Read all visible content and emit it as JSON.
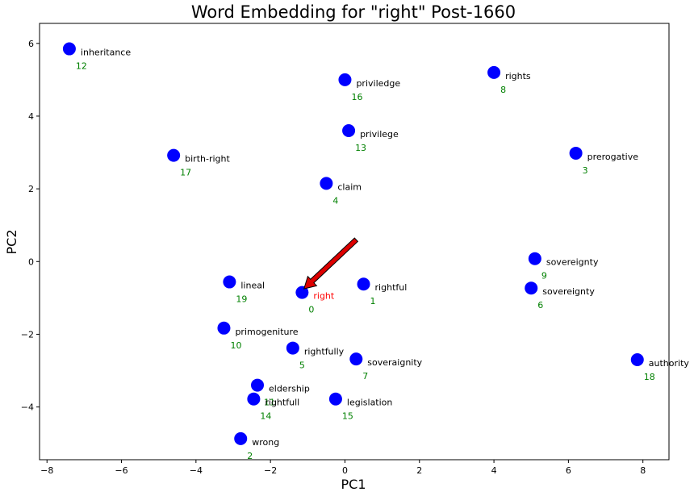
{
  "chart_data": {
    "type": "scatter",
    "title": "Word Embedding for \"right\" Post-1660",
    "xlabel": "PC1",
    "ylabel": "PC2",
    "xlim": [
      -8.2,
      8.7
    ],
    "ylim": [
      -5.45,
      6.55
    ],
    "xticks": [
      -8,
      -6,
      -4,
      -2,
      0,
      2,
      4,
      6,
      8
    ],
    "yticks": [
      -4,
      -2,
      0,
      2,
      4,
      6
    ],
    "grid": false,
    "point_color": "#0000ff",
    "word_label_color": "#000000",
    "highlight_label_color": "#ff0000",
    "index_label_color": "#008000",
    "arrow_color": "#dd0000",
    "arrow": {
      "from": [
        0.3,
        0.6
      ],
      "to": [
        -1.1,
        -0.75
      ]
    },
    "points": [
      {
        "word": "right",
        "index": "0",
        "x": -1.15,
        "y": -0.85,
        "highlight": true
      },
      {
        "word": "rightful",
        "index": "1",
        "x": 0.5,
        "y": -0.62
      },
      {
        "word": "wrong",
        "index": "2",
        "x": -2.8,
        "y": -4.87
      },
      {
        "word": "prerogative",
        "index": "3",
        "x": 6.2,
        "y": 2.98
      },
      {
        "word": "claim",
        "index": "4",
        "x": -0.5,
        "y": 2.15
      },
      {
        "word": "rightfully",
        "index": "5",
        "x": -1.4,
        "y": -2.38
      },
      {
        "word": "sovereignty",
        "index": "6",
        "x": 5.0,
        "y": -0.73
      },
      {
        "word": "soveraignity",
        "index": "7",
        "x": 0.3,
        "y": -2.68
      },
      {
        "word": "rights",
        "index": "8",
        "x": 4.0,
        "y": 5.2
      },
      {
        "word": "sovereignty",
        "index": "9",
        "x": 5.1,
        "y": 0.08
      },
      {
        "word": "primogeniture",
        "index": "10",
        "x": -3.25,
        "y": -1.83
      },
      {
        "word": "eldership",
        "index": "11",
        "x": -2.35,
        "y": -3.4
      },
      {
        "word": "inheritance",
        "index": "12",
        "x": -7.4,
        "y": 5.85
      },
      {
        "word": "privilege",
        "index": "13",
        "x": 0.1,
        "y": 3.6
      },
      {
        "word": "rightfull",
        "index": "14",
        "x": -2.45,
        "y": -3.78
      },
      {
        "word": "legislation",
        "index": "15",
        "x": -0.25,
        "y": -3.78
      },
      {
        "word": "priviledge",
        "index": "16",
        "x": 0.0,
        "y": 5.0
      },
      {
        "word": "birth-right",
        "index": "17",
        "x": -4.6,
        "y": 2.92
      },
      {
        "word": "authority",
        "index": "18",
        "x": 7.85,
        "y": -2.7
      },
      {
        "word": "lineal",
        "index": "19",
        "x": -3.1,
        "y": -0.56
      }
    ]
  }
}
